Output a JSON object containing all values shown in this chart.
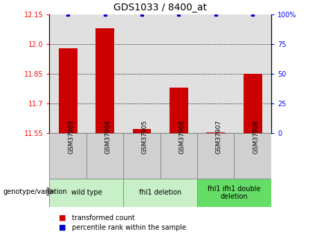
{
  "title": "GDS1033 / 8400_at",
  "samples": [
    "GSM37903",
    "GSM37904",
    "GSM37905",
    "GSM37906",
    "GSM37907",
    "GSM37908"
  ],
  "red_values": [
    11.98,
    12.08,
    11.57,
    11.78,
    11.555,
    11.85
  ],
  "blue_values": [
    100,
    100,
    100,
    100,
    100,
    100
  ],
  "ylim_left": [
    11.55,
    12.15
  ],
  "ylim_right": [
    0,
    100
  ],
  "yticks_left": [
    11.55,
    11.7,
    11.85,
    12.0,
    12.15
  ],
  "yticks_right": [
    0,
    25,
    50,
    75,
    100
  ],
  "ytick_labels_right": [
    "0",
    "25",
    "50",
    "75",
    "100%"
  ],
  "group_bounds": [
    {
      "start": 0,
      "end": 1,
      "label": "wild type",
      "color": "#c8f0c8"
    },
    {
      "start": 2,
      "end": 3,
      "label": "fhl1 deletion",
      "color": "#c8f0c8"
    },
    {
      "start": 4,
      "end": 5,
      "label": "fhl1 ifh1 double\ndeletion",
      "color": "#66dd66"
    }
  ],
  "bar_color": "#cc0000",
  "dot_color": "#0000cc",
  "bar_width": 0.5,
  "legend_red_label": "transformed count",
  "legend_blue_label": "percentile rank within the sample",
  "genotype_label": "genotype/variation",
  "background_color": "#ffffff",
  "plot_bg_color": "#e0e0e0",
  "sample_box_color": "#d0d0d0",
  "grid_color": "#000000",
  "title_fontsize": 10,
  "tick_fontsize": 7,
  "label_fontsize": 7.5
}
